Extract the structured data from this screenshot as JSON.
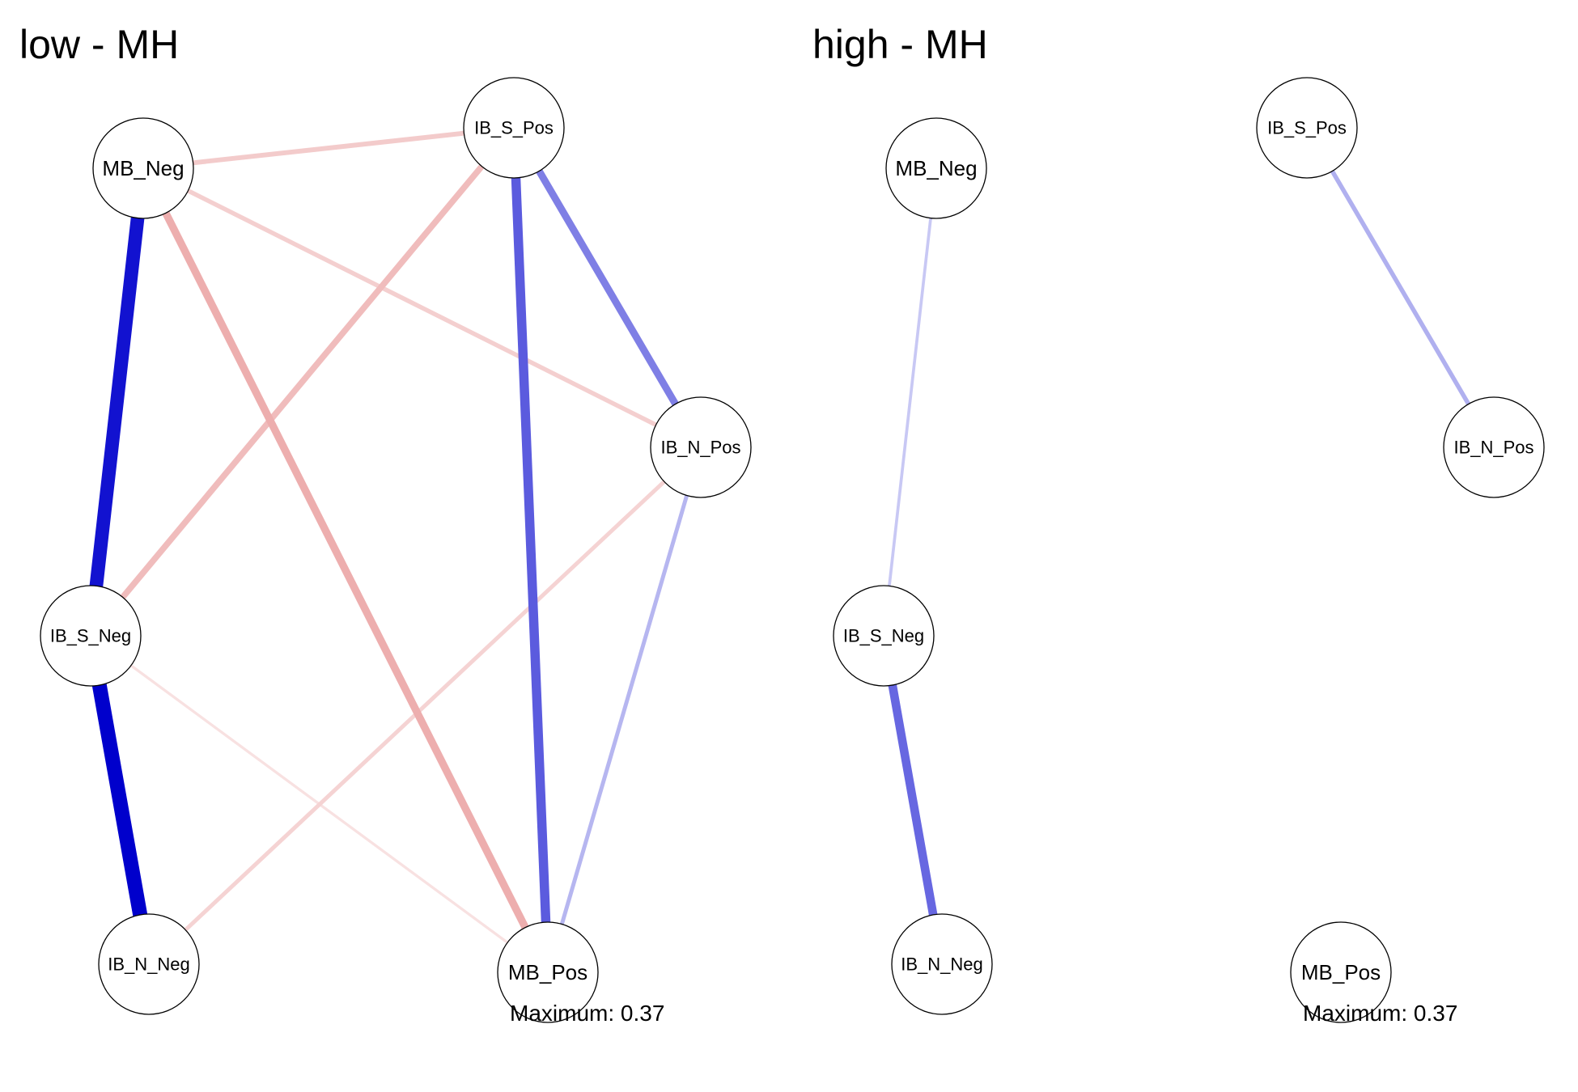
{
  "maximum_text": "Maximum: 0.37",
  "colors": {
    "positive_edge": "#0000CC",
    "negative_edge": "#DC6464",
    "node_fill": "#FFFFFF",
    "node_border": "#000000"
  },
  "panels": [
    {
      "title": "low - MH",
      "nodes": [
        "MB_Neg",
        "IB_S_Pos",
        "IB_N_Pos",
        "IB_S_Neg",
        "IB_N_Neg",
        "MB_Pos"
      ],
      "edges": [
        {
          "from": "MB_Neg",
          "to": "IB_S_Neg",
          "sign": "positive",
          "weight": 0.34
        },
        {
          "from": "IB_S_Neg",
          "to": "IB_N_Neg",
          "sign": "positive",
          "weight": 0.37
        },
        {
          "from": "IB_S_Pos",
          "to": "MB_Pos",
          "sign": "positive",
          "weight": 0.22
        },
        {
          "from": "IB_S_Pos",
          "to": "IB_N_Pos",
          "sign": "positive",
          "weight": 0.16
        },
        {
          "from": "IB_N_Pos",
          "to": "MB_Pos",
          "sign": "positive",
          "weight": 0.07
        },
        {
          "from": "MB_Neg",
          "to": "MB_Pos",
          "sign": "negative",
          "weight": 0.17
        },
        {
          "from": "IB_S_Pos",
          "to": "IB_S_Neg",
          "sign": "negative",
          "weight": 0.13
        },
        {
          "from": "MB_Neg",
          "to": "IB_S_Pos",
          "sign": "negative",
          "weight": 0.09
        },
        {
          "from": "MB_Neg",
          "to": "IB_N_Pos",
          "sign": "negative",
          "weight": 0.08
        },
        {
          "from": "IB_N_Pos",
          "to": "IB_N_Neg",
          "sign": "negative",
          "weight": 0.07
        },
        {
          "from": "IB_S_Neg",
          "to": "MB_Pos",
          "sign": "negative",
          "weight": 0.03
        }
      ]
    },
    {
      "title": "high - MH",
      "nodes": [
        "MB_Neg",
        "IB_S_Pos",
        "IB_N_Pos",
        "IB_S_Neg",
        "IB_N_Neg",
        "MB_Pos"
      ],
      "edges": [
        {
          "from": "IB_S_Neg",
          "to": "IB_N_Neg",
          "sign": "positive",
          "weight": 0.2
        },
        {
          "from": "IB_S_Pos",
          "to": "IB_N_Pos",
          "sign": "positive",
          "weight": 0.08
        },
        {
          "from": "MB_Neg",
          "to": "IB_S_Neg",
          "sign": "positive",
          "weight": 0.04
        }
      ]
    }
  ]
}
